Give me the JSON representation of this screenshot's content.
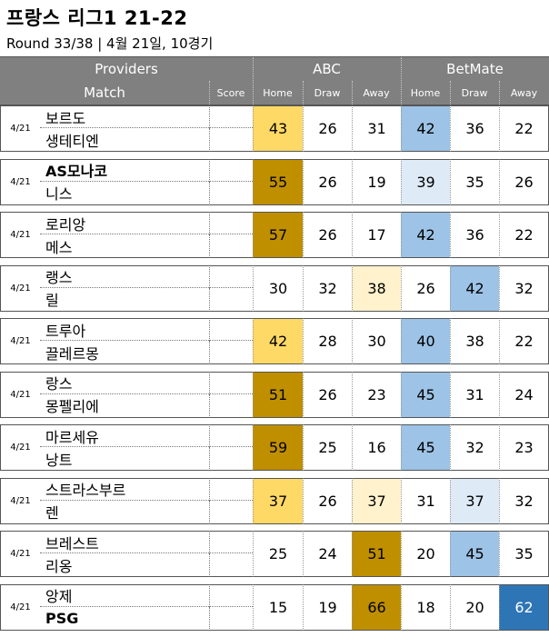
{
  "title": "프랑스 리그1 21-22",
  "subtitle": "Round 33/38  | 4월 21일, 10경기",
  "header": {
    "providers_label": "Providers",
    "match_label": "Match",
    "score_label": "Score",
    "provider1": "ABC",
    "provider2": "BetMate",
    "home": "Home",
    "draw": "Draw",
    "away": "Away"
  },
  "colors": {
    "header_bg": "#808080",
    "gold_dark": "#BF8F00",
    "gold_mid": "#FFD966",
    "gold_light": "#FFF2CC",
    "blue_dark": "#2E75B6",
    "blue_mid": "#9DC3E6",
    "blue_light": "#DEEBF7"
  },
  "matches": [
    {
      "date": "4/21",
      "home": "보르도",
      "away": "생테티엔",
      "abc": [
        "43",
        "26",
        "31"
      ],
      "bm": [
        "42",
        "36",
        "22"
      ]
    },
    {
      "date": "4/21",
      "home": "AS모나코",
      "away": "니스",
      "abc": [
        "55",
        "26",
        "19"
      ],
      "bm": [
        "39",
        "35",
        "26"
      ]
    },
    {
      "date": "4/21",
      "home": "로리앙",
      "away": "메스",
      "abc": [
        "57",
        "26",
        "17"
      ],
      "bm": [
        "42",
        "36",
        "22"
      ]
    },
    {
      "date": "4/21",
      "home": "랭스",
      "away": "릴",
      "abc": [
        "30",
        "32",
        "38"
      ],
      "bm": [
        "26",
        "42",
        "32"
      ]
    },
    {
      "date": "4/21",
      "home": "트루아",
      "away": "끌레르몽",
      "abc": [
        "42",
        "28",
        "30"
      ],
      "bm": [
        "40",
        "38",
        "22"
      ]
    },
    {
      "date": "4/21",
      "home": "랑스",
      "away": "몽펠리에",
      "abc": [
        "51",
        "26",
        "23"
      ],
      "bm": [
        "45",
        "31",
        "24"
      ]
    },
    {
      "date": "4/21",
      "home": "마르세유",
      "away": "낭트",
      "abc": [
        "59",
        "25",
        "16"
      ],
      "bm": [
        "45",
        "32",
        "23"
      ]
    },
    {
      "date": "4/21",
      "home": "스트라스부르",
      "away": "렌",
      "abc": [
        "37",
        "26",
        "37"
      ],
      "bm": [
        "31",
        "37",
        "32"
      ]
    },
    {
      "date": "4/21",
      "home": "브레스트",
      "away": "리옹",
      "abc": [
        "25",
        "24",
        "51"
      ],
      "bm": [
        "20",
        "45",
        "35"
      ]
    },
    {
      "date": "4/21",
      "home": "앙제",
      "away": "PSG",
      "abc": [
        "15",
        "19",
        "66"
      ],
      "bm": [
        "18",
        "20",
        "62"
      ]
    }
  ],
  "highlights": {
    "abc": [
      [
        "gold_mid",
        null,
        null
      ],
      [
        "gold_dark",
        null,
        null
      ],
      [
        "gold_dark",
        null,
        null
      ],
      [
        null,
        null,
        "gold_light"
      ],
      [
        "gold_mid",
        null,
        null
      ],
      [
        "gold_dark",
        null,
        null
      ],
      [
        "gold_dark",
        null,
        null
      ],
      [
        "gold_mid",
        null,
        "gold_light"
      ],
      [
        null,
        null,
        "gold_dark"
      ],
      [
        null,
        null,
        "gold_dark"
      ]
    ],
    "bm": [
      [
        "blue_mid",
        null,
        null
      ],
      [
        "blue_light",
        null,
        null
      ],
      [
        "blue_mid",
        null,
        null
      ],
      [
        null,
        "blue_mid",
        null
      ],
      [
        "blue_mid",
        null,
        null
      ],
      [
        "blue_mid",
        null,
        null
      ],
      [
        "blue_mid",
        null,
        null
      ],
      [
        null,
        "blue_light",
        null
      ],
      [
        null,
        "blue_mid",
        null
      ],
      [
        null,
        null,
        "blue_dark"
      ]
    ]
  }
}
